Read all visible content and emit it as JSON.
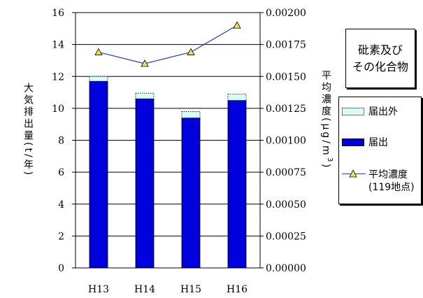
{
  "title": [
    "砒素及び",
    "その化合物"
  ],
  "chart_data": {
    "type": "bar",
    "categories": [
      "H13",
      "H14",
      "H15",
      "H16"
    ],
    "series": [
      {
        "name": "届出外",
        "type": "bar",
        "stack": "a",
        "axis": "left",
        "values": [
          0.3,
          0.35,
          0.4,
          0.4
        ],
        "color": "#d9fbfb"
      },
      {
        "name": "届出",
        "type": "bar",
        "stack": "a",
        "axis": "left",
        "values": [
          11.7,
          10.6,
          9.4,
          10.5
        ],
        "color": "#0000dd"
      },
      {
        "name": "平均濃度",
        "name_note": "(119地点)",
        "type": "line",
        "axis": "right",
        "values": [
          0.00169,
          0.0016,
          0.00169,
          0.0019
        ],
        "color": "#1f3fc8",
        "marker_color": "#f4e04d"
      }
    ],
    "ylabel": "大気排出量(t/年)",
    "y2label": "平均濃度(μg/m³)",
    "ylim": [
      0,
      16
    ],
    "y2lim": [
      0,
      0.002
    ],
    "yticks": [
      "0",
      "2",
      "4",
      "6",
      "8",
      "10",
      "12",
      "14",
      "16"
    ],
    "y2ticks": [
      "0.00000",
      "0.00025",
      "0.00050",
      "0.00075",
      "0.00100",
      "0.00125",
      "0.00150",
      "0.00175",
      "0.00200"
    ],
    "grid": true,
    "legend": "right"
  },
  "ylabel_text": "大気排出量(t/年)",
  "y2label_parts": {
    "main": "平均濃度(μg/m",
    "sup": "3",
    "end": ")"
  },
  "legend": {
    "item1": "届出外",
    "item2": "届出",
    "item3a": "平均濃度",
    "item3b": "(119地点)"
  }
}
